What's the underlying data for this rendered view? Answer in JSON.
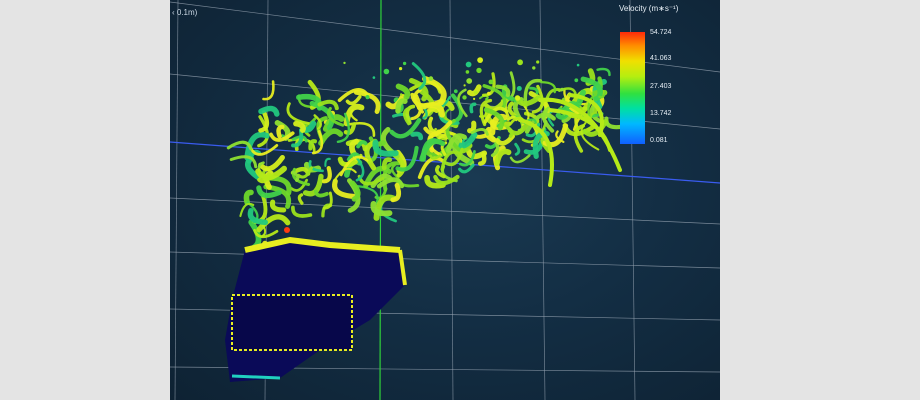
{
  "viewport": {
    "grid_spacing_label": "‹ 0.1m)",
    "legend": {
      "title": "Velocity (m∗s⁻¹)",
      "ticks": [
        "54.724",
        "41.063",
        "27.403",
        "13.742",
        "0.081"
      ]
    }
  },
  "colors": {
    "background": "#132e44",
    "grid": "#9aa7b5",
    "axis_green": "#2fd13a",
    "axis_blue": "#3a5cf0",
    "body_navy": "#0a0a58",
    "edge_yellow": "#e8ee20"
  }
}
